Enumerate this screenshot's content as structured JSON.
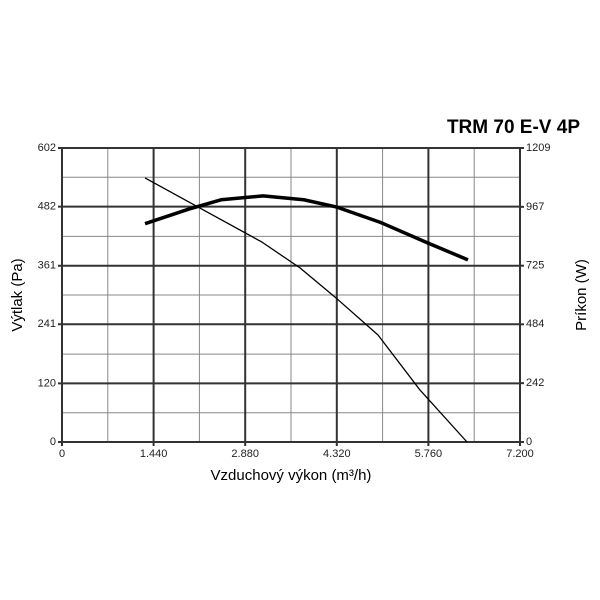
{
  "chart_data": {
    "type": "line",
    "title": "TRM 70 E-V 4P",
    "xlabel": "Vzduchový výkon (m³/h)",
    "ylabel": "Výtlak (Pa)",
    "y2label": "Príkon (W)",
    "xlim": [
      0,
      7200
    ],
    "xticks": [
      0,
      {
        "value": 1440,
        "label": "1.440"
      },
      {
        "value": 2880,
        "label": "2.880"
      },
      {
        "value": 4320,
        "label": "4.320"
      },
      {
        "value": 5760,
        "label": "5.760"
      },
      {
        "value": 7200,
        "label": "7.200"
      }
    ],
    "xminorticks": [
      720,
      2160,
      3600,
      5040,
      6480
    ],
    "ylim": [
      0,
      602
    ],
    "yticks": [
      0,
      120,
      241,
      361,
      482,
      602
    ],
    "yminorticks": [
      60,
      180,
      301,
      421,
      542
    ],
    "y2lim": [
      0,
      1209
    ],
    "y2ticks": [
      0,
      242,
      484,
      725,
      967,
      1209
    ],
    "grid": true,
    "series": [
      {
        "color": "#000000",
        "line_width": 3.5,
        "x": [
          1305,
          1996,
          2500,
          3160,
          3800,
          4320,
          5000,
          5760,
          6382
        ],
        "values": [
          447,
          477,
          496,
          504,
          496,
          481,
          450,
          407,
          373
        ]
      },
      {
        "color": "#000000",
        "line_width": 1.3,
        "axis": "y2",
        "x": [
          1305,
          3144,
          3741,
          4292,
          4968,
          5627,
          6367
        ],
        "values": [
          1086,
          822,
          716,
          596,
          440,
          214,
          0
        ]
      }
    ]
  }
}
